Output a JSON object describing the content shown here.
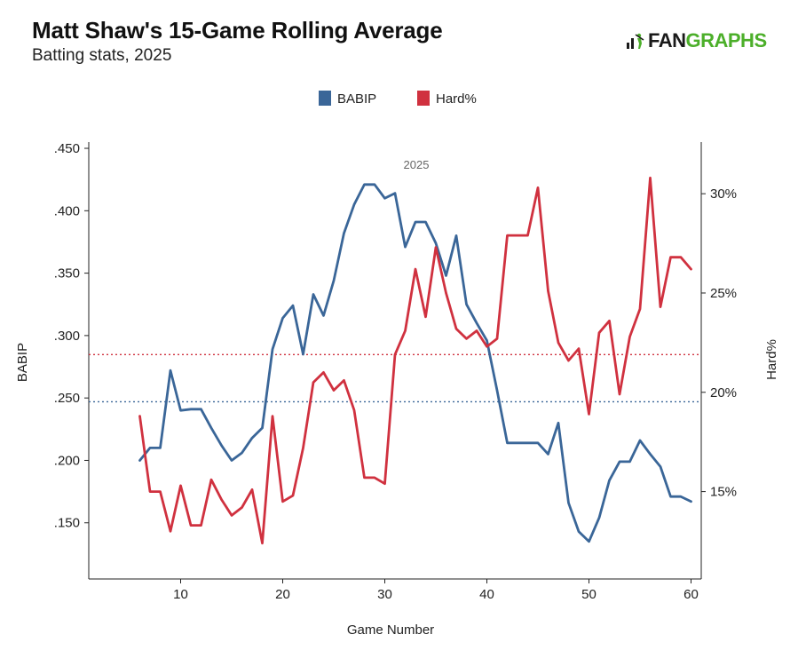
{
  "header": {
    "title": "Matt Shaw's 15-Game Rolling Average",
    "subtitle": "Batting stats, 2025",
    "logo_fan": "FAN",
    "logo_graphs": "GRAPHS"
  },
  "colors": {
    "babip": "#3a6698",
    "hard": "#d0313f",
    "axis": "#222222"
  },
  "chart_data": {
    "type": "line",
    "annotation": "2025",
    "xlabel": "Game Number",
    "ylabel": "BABIP",
    "y2label": "Hard%",
    "legend": [
      "BABIP",
      "Hard%"
    ],
    "xlim": [
      1,
      61
    ],
    "ylim": [
      0.105,
      0.455
    ],
    "y2lim": [
      10.6,
      32.6
    ],
    "x_ticks": [
      10,
      20,
      30,
      40,
      50,
      60
    ],
    "x_tick_labels": [
      "10",
      "20",
      "30",
      "40",
      "50",
      "60"
    ],
    "y_ticks": [
      0.15,
      0.2,
      0.25,
      0.3,
      0.35,
      0.4,
      0.45
    ],
    "y_tick_labels": [
      ".150",
      ".200",
      ".250",
      ".300",
      ".350",
      ".400",
      ".450"
    ],
    "y2_ticks": [
      15,
      20,
      25,
      30
    ],
    "y2_tick_labels": [
      "15%",
      "20%",
      "25%",
      "30%"
    ],
    "reference_lines": {
      "babip_avg": 0.247,
      "hard_avg": 21.9
    },
    "x": [
      6,
      7,
      8,
      9,
      10,
      11,
      12,
      13,
      14,
      15,
      16,
      17,
      18,
      19,
      20,
      21,
      22,
      23,
      24,
      25,
      26,
      27,
      28,
      29,
      30,
      31,
      32,
      33,
      34,
      35,
      36,
      37,
      38,
      39,
      40,
      41,
      42,
      43,
      44,
      45,
      46,
      47,
      48,
      49,
      50,
      51,
      52,
      53,
      54,
      55,
      56,
      57,
      58,
      59,
      60
    ],
    "series": [
      {
        "name": "BABIP",
        "axis": "left",
        "values": [
          0.2,
          0.21,
          0.21,
          0.272,
          0.24,
          0.241,
          0.241,
          0.226,
          0.212,
          0.2,
          0.206,
          0.218,
          0.226,
          0.289,
          0.314,
          0.324,
          0.285,
          0.333,
          0.316,
          0.344,
          0.382,
          0.405,
          0.421,
          0.421,
          0.41,
          0.414,
          0.371,
          0.391,
          0.391,
          0.374,
          0.348,
          0.38,
          0.325,
          0.31,
          0.296,
          0.256,
          0.214,
          0.214,
          0.214,
          0.214,
          0.205,
          0.23,
          0.166,
          0.143,
          0.135,
          0.154,
          0.184,
          0.199,
          0.199,
          0.216,
          0.205,
          0.195,
          0.171,
          0.171,
          0.167
        ]
      },
      {
        "name": "Hard%",
        "axis": "right",
        "values": [
          18.8,
          15.0,
          15.0,
          13.0,
          15.3,
          13.3,
          13.3,
          15.6,
          14.6,
          13.8,
          14.2,
          15.1,
          12.4,
          18.8,
          14.5,
          14.8,
          17.2,
          20.5,
          21.0,
          20.1,
          20.6,
          19.1,
          15.7,
          15.7,
          15.4,
          21.9,
          23.1,
          26.2,
          23.8,
          27.3,
          25.0,
          23.2,
          22.7,
          23.1,
          22.3,
          22.7,
          27.9,
          27.9,
          27.9,
          30.3,
          25.1,
          22.5,
          21.6,
          22.2,
          18.9,
          23.0,
          23.6,
          19.9,
          22.8,
          24.2,
          30.8,
          24.3,
          26.8,
          26.8,
          26.2
        ]
      }
    ]
  }
}
